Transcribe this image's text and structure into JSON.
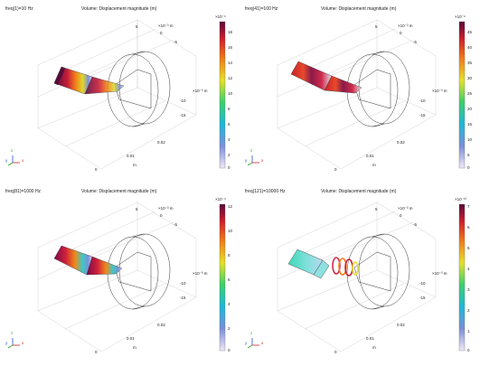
{
  "panels": [
    {
      "freq_label": "freq(1)=10 Hz",
      "plot_title": "Volume: Displacement magnitude (m)",
      "colorbar": {
        "exponent": "×10⁻⁹",
        "ticks": [
          "18",
          "16",
          "14",
          "12",
          "10",
          "8",
          "6",
          "4",
          "2",
          "0"
        ]
      },
      "axes": {
        "top_exponent": "×10⁻³ m",
        "top_ticks": [
          "5",
          "0",
          "-5"
        ],
        "right_ticks": [
          "-10",
          "-15"
        ],
        "right_exponent": "×10⁻³ m",
        "bottom_ticks": [
          "0.02",
          "0.01",
          "0"
        ],
        "bottom_unit": "m"
      },
      "triad": [
        "y",
        "z",
        "x"
      ]
    },
    {
      "freq_label": "freq(41)=100 Hz",
      "plot_title": "Volume: Displacement magnitude (m)",
      "colorbar": {
        "exponent": "×10⁻⁹",
        "ticks": [
          "45",
          "40",
          "35",
          "30",
          "25",
          "20",
          "15",
          "10",
          "5",
          "0"
        ]
      },
      "axes": {
        "top_exponent": "×10⁻³ m",
        "top_ticks": [
          "5",
          "0",
          "-5"
        ],
        "right_ticks": [
          "-10",
          "-15"
        ],
        "right_exponent": "×10⁻³ m",
        "bottom_ticks": [
          "0.02",
          "0.01",
          "0"
        ],
        "bottom_unit": "m"
      },
      "triad": [
        "y",
        "z",
        "x"
      ]
    },
    {
      "freq_label": "freq(81)=1000 Hz",
      "plot_title": "Volume: Displacement magnitude (m)",
      "colorbar": {
        "exponent": "×10⁻⁹",
        "ticks": [
          "12",
          "10",
          "8",
          "6",
          "4",
          "2",
          "0"
        ]
      },
      "axes": {
        "top_exponent": "×10⁻³ m",
        "top_ticks": [
          "5",
          "0",
          "-5"
        ],
        "right_ticks": [
          "-10",
          "-15"
        ],
        "right_exponent": "×10⁻³ m",
        "bottom_ticks": [
          "0.02",
          "0.01",
          "0"
        ],
        "bottom_unit": "m"
      },
      "triad": [
        "y",
        "z",
        "x"
      ]
    },
    {
      "freq_label": "freq(121)=10000 Hz",
      "plot_title": "Volume: Displacement magnitude (m)",
      "colorbar": {
        "exponent": "×10⁻¹⁰",
        "ticks": [
          "7",
          "6",
          "5",
          "4",
          "3",
          "2",
          "1",
          "0"
        ]
      },
      "axes": {
        "top_exponent": "×10⁻³ m",
        "top_ticks": [
          "5",
          "0",
          "-5"
        ],
        "right_ticks": [
          "-10",
          "-15"
        ],
        "right_exponent": "×10⁻³ m",
        "bottom_ticks": [
          "0.02",
          "0.01",
          "0"
        ],
        "bottom_unit": "m"
      },
      "triad": [
        "y",
        "z",
        "x"
      ]
    }
  ]
}
